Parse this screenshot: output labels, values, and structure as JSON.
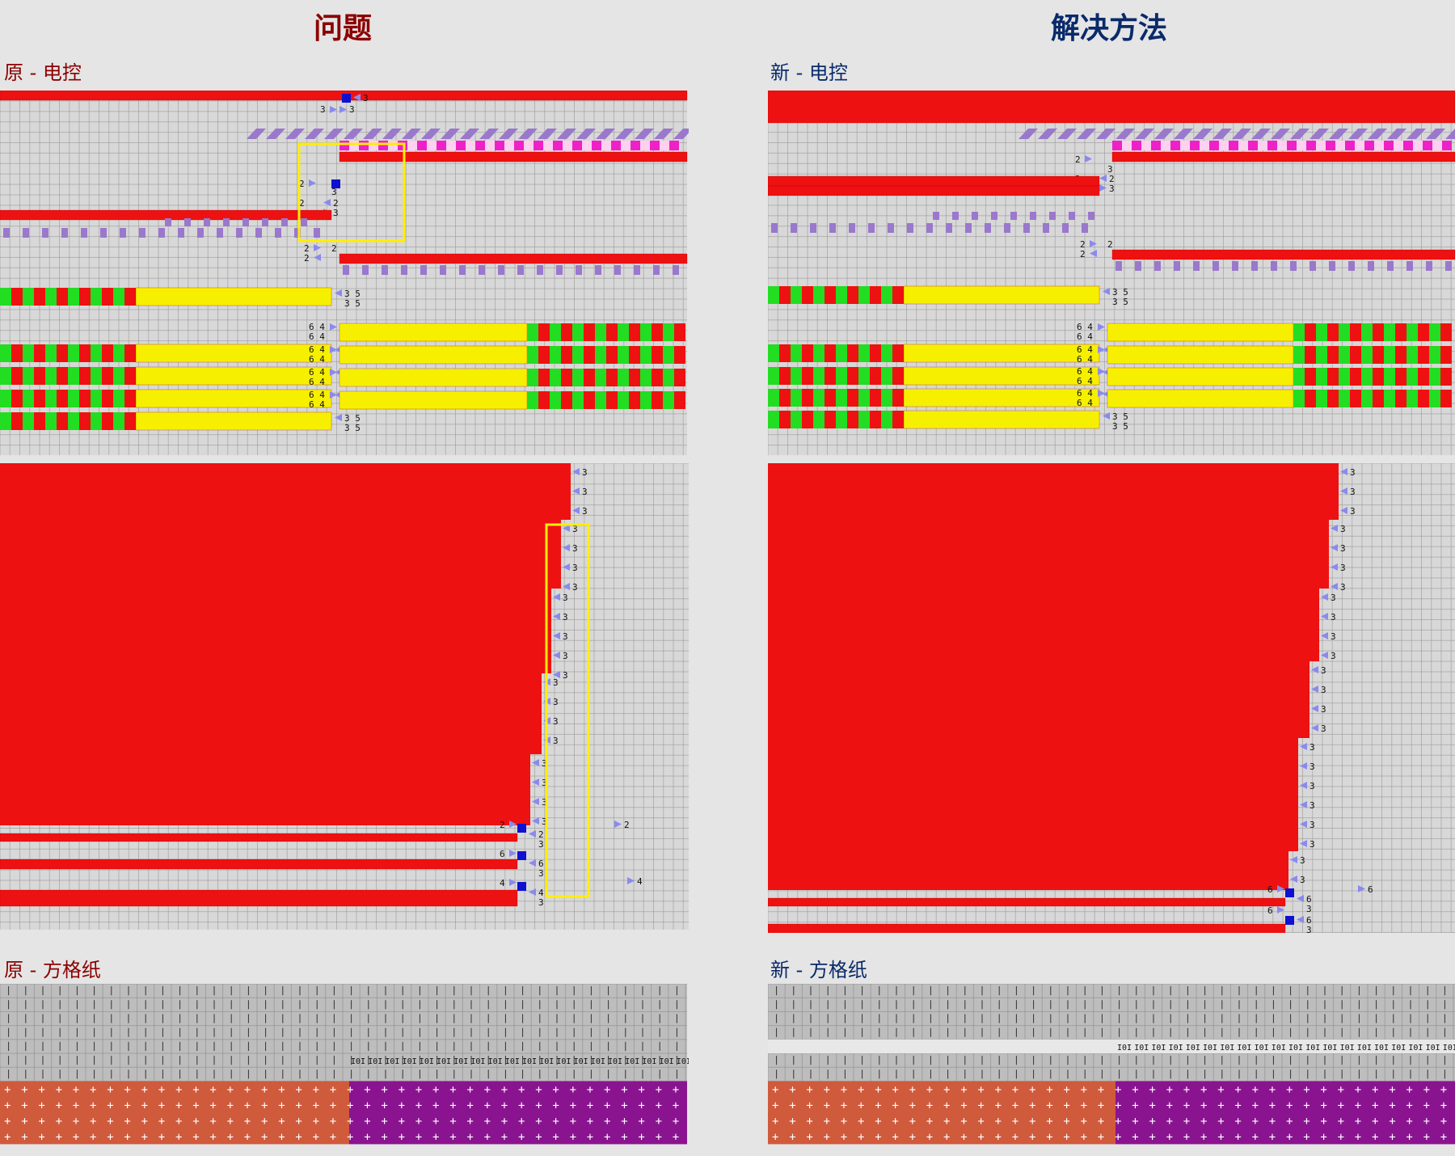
{
  "titles": {
    "problem": "问题",
    "solution": "解决方法",
    "problem_color": "#8b0000",
    "solution_color": "#0a2a6a"
  },
  "sections": {
    "orig_ec": "原 - 电控",
    "new_ec": "新 - 电控",
    "orig_grid": "原 - 方格纸",
    "new_grid": "新 - 方格纸"
  },
  "colors": {
    "background": "#e5e5e5",
    "grid_bg": "#d8d8d8",
    "grid_line": "#9a9a9a",
    "red": "#ee1111",
    "yellow": "#f6f000",
    "green": "#22dd22",
    "purple": "#9a78cc",
    "magenta": "#f020c8",
    "blue_marker": "#1010d0",
    "triangle": "#8a8aee",
    "highlight": "#ffee00",
    "paper_gray": "#bdbdbd",
    "paper_light": "#e8e8e8",
    "paper_orange": "#cf5a3c",
    "paper_purple": "#8a1490"
  },
  "icons": {
    "triangle": "triangle-marker-icon",
    "knit": "circle-knit-icon",
    "plus": "plus-stitch-icon",
    "bar": "bar-stitch-icon"
  },
  "labels": {
    "n2": "2",
    "n3": "3",
    "n4": "4",
    "n6": "6",
    "n64": "6 4",
    "n35": "3 5"
  }
}
